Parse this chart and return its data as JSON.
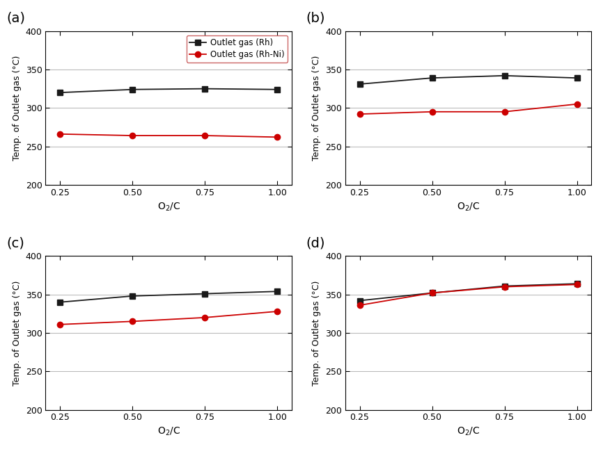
{
  "x": [
    0.25,
    0.5,
    0.75,
    1.0
  ],
  "panels": [
    {
      "label": "(a)",
      "rh": [
        320,
        324,
        325,
        324
      ],
      "rhni": [
        266,
        264,
        264,
        262
      ]
    },
    {
      "label": "(b)",
      "rh": [
        331,
        339,
        342,
        339
      ],
      "rhni": [
        292,
        295,
        295,
        305
      ]
    },
    {
      "label": "(c)",
      "rh": [
        340,
        348,
        351,
        354
      ],
      "rhni": [
        311,
        315,
        320,
        328
      ]
    },
    {
      "label": "(d)",
      "rh": [
        342,
        352,
        361,
        364
      ],
      "rhni": [
        336,
        352,
        360,
        363
      ]
    }
  ],
  "legend_labels": [
    "Outlet gas (Rh)",
    "Outlet gas (Rh-Ni)"
  ],
  "rh_color": "#1a1a1a",
  "rhni_color": "#cc0000",
  "marker_rh": "s",
  "marker_rhni": "o",
  "xlabel": "O$_2$/C",
  "ylabel": "Temp. of Outlet gas (°C)",
  "ylim": [
    200,
    400
  ],
  "yticks": [
    200,
    250,
    300,
    350,
    400
  ],
  "xlim": [
    0.2,
    1.05
  ],
  "xticks": [
    0.25,
    0.5,
    0.75,
    1.0
  ],
  "grid_color": "#bbbbbb",
  "legend_edgecolor": "#cc6666",
  "background_color": "#ffffff",
  "figsize": [
    8.66,
    6.46
  ],
  "dpi": 100,
  "markersize": 6,
  "linewidth": 1.3,
  "tick_fontsize": 9,
  "label_fontsize": 10,
  "panel_label_fontsize": 14
}
